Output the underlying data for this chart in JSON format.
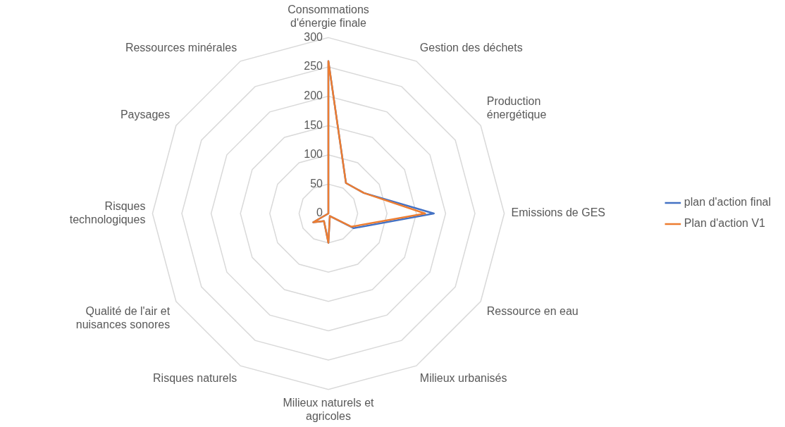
{
  "chart_data": {
    "type": "radar",
    "categories": [
      "Consommations d'énergie finale",
      "Gestion des déchets",
      "Production énergétique",
      "Emissions de GES",
      "Ressource en eau",
      "Milieux urbanisés",
      "Milieux naturels et agricoles",
      "Risques naturels",
      "Qualité de l'air et nuisances sonores",
      "Risques technologiques",
      "Paysages",
      "Ressources minérales"
    ],
    "series": [
      {
        "name": "plan d'action final",
        "color": "#4472c4",
        "values": [
          260,
          60,
          70,
          180,
          50,
          5,
          50,
          15,
          30,
          0,
          0,
          0
        ]
      },
      {
        "name": "Plan d'action V1",
        "color": "#ed7d31",
        "values": [
          260,
          60,
          70,
          165,
          45,
          5,
          50,
          15,
          30,
          0,
          0,
          0
        ]
      }
    ],
    "ylim": [
      0,
      300
    ],
    "yticks": [
      0,
      50,
      100,
      150,
      200,
      250,
      300
    ],
    "grid": true,
    "legend": "right",
    "marker": "none"
  }
}
